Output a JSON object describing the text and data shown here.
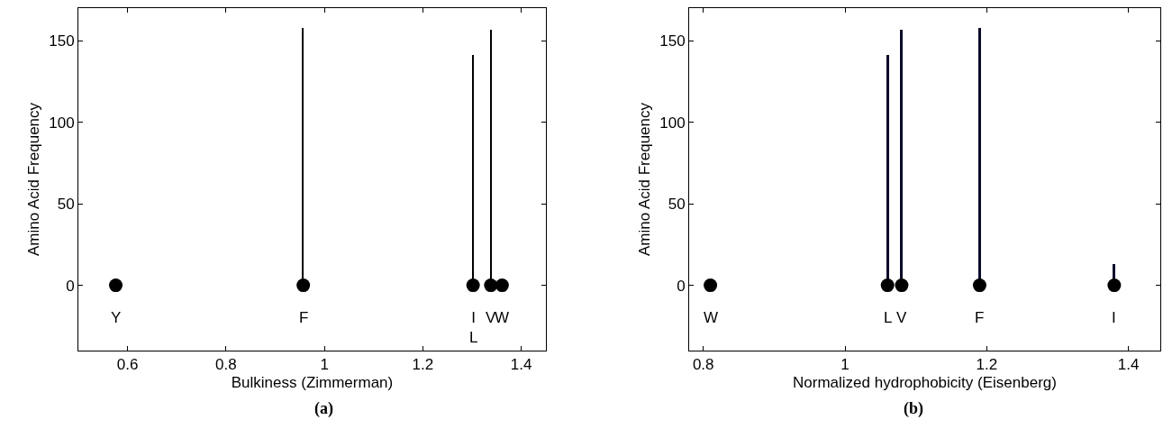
{
  "chart_data": [
    {
      "type": "bar",
      "xlabel": "Bulkiness (Zimmerman)",
      "ylabel": "Amino Acid Frequency",
      "xlim": [
        0.5,
        1.45
      ],
      "xticks": [
        0.6,
        0.8,
        1,
        1.2,
        1.4
      ],
      "ylim": [
        -40,
        170
      ],
      "yticks": [
        0,
        50,
        100,
        150
      ],
      "series": [
        {
          "color": "#000000",
          "x": [
            0.576,
            0.957,
            1.302,
            1.338,
            1.361
          ],
          "values": [
            0,
            158,
            141,
            157,
            0
          ]
        },
        {
          "type": "scatter",
          "marker": "circle",
          "color": "#000000",
          "x": [
            0.576,
            0.957,
            1.302,
            1.338,
            1.361
          ],
          "values": [
            0,
            0,
            0,
            0,
            0
          ]
        }
      ],
      "annotations": [
        {
          "text": "Y",
          "x": 0.576,
          "y": 0
        },
        {
          "text": "F",
          "x": 0.957,
          "y": 0
        },
        {
          "text": "I\nL",
          "x": 1.302,
          "y": 0
        },
        {
          "text": "V",
          "x": 1.338,
          "y": 0
        },
        {
          "text": "W",
          "x": 1.361,
          "y": 0
        },
        "(a)"
      ]
    },
    {
      "type": "bar",
      "xlabel": "Normalized hydrophobicity (Eisenberg)",
      "ylabel": "Amino Acid Frequency",
      "xlim": [
        0.78,
        1.445
      ],
      "xticks": [
        0.8,
        1,
        1.2,
        1.4
      ],
      "ylim": [
        -40,
        170
      ],
      "yticks": [
        0,
        50,
        100,
        150
      ],
      "series": [
        {
          "color": "#0a0a2a",
          "x": [
            0.81,
            1.06,
            1.08,
            1.19,
            1.38
          ],
          "values": [
            0,
            141,
            157,
            158,
            13
          ]
        },
        {
          "type": "scatter",
          "marker": "circle",
          "color": "#000000",
          "x": [
            0.81,
            1.06,
            1.08,
            1.19,
            1.38
          ],
          "values": [
            0,
            0,
            0,
            0,
            0
          ]
        }
      ],
      "annotations": [
        {
          "text": "W",
          "x": 0.81,
          "y": 0
        },
        {
          "text": "L",
          "x": 1.06,
          "y": 0
        },
        {
          "text": "V",
          "x": 1.08,
          "y": 0
        },
        {
          "text": "F",
          "x": 1.19,
          "y": 0
        },
        {
          "text": "I",
          "x": 1.38,
          "y": 0
        },
        "(b)"
      ]
    }
  ]
}
